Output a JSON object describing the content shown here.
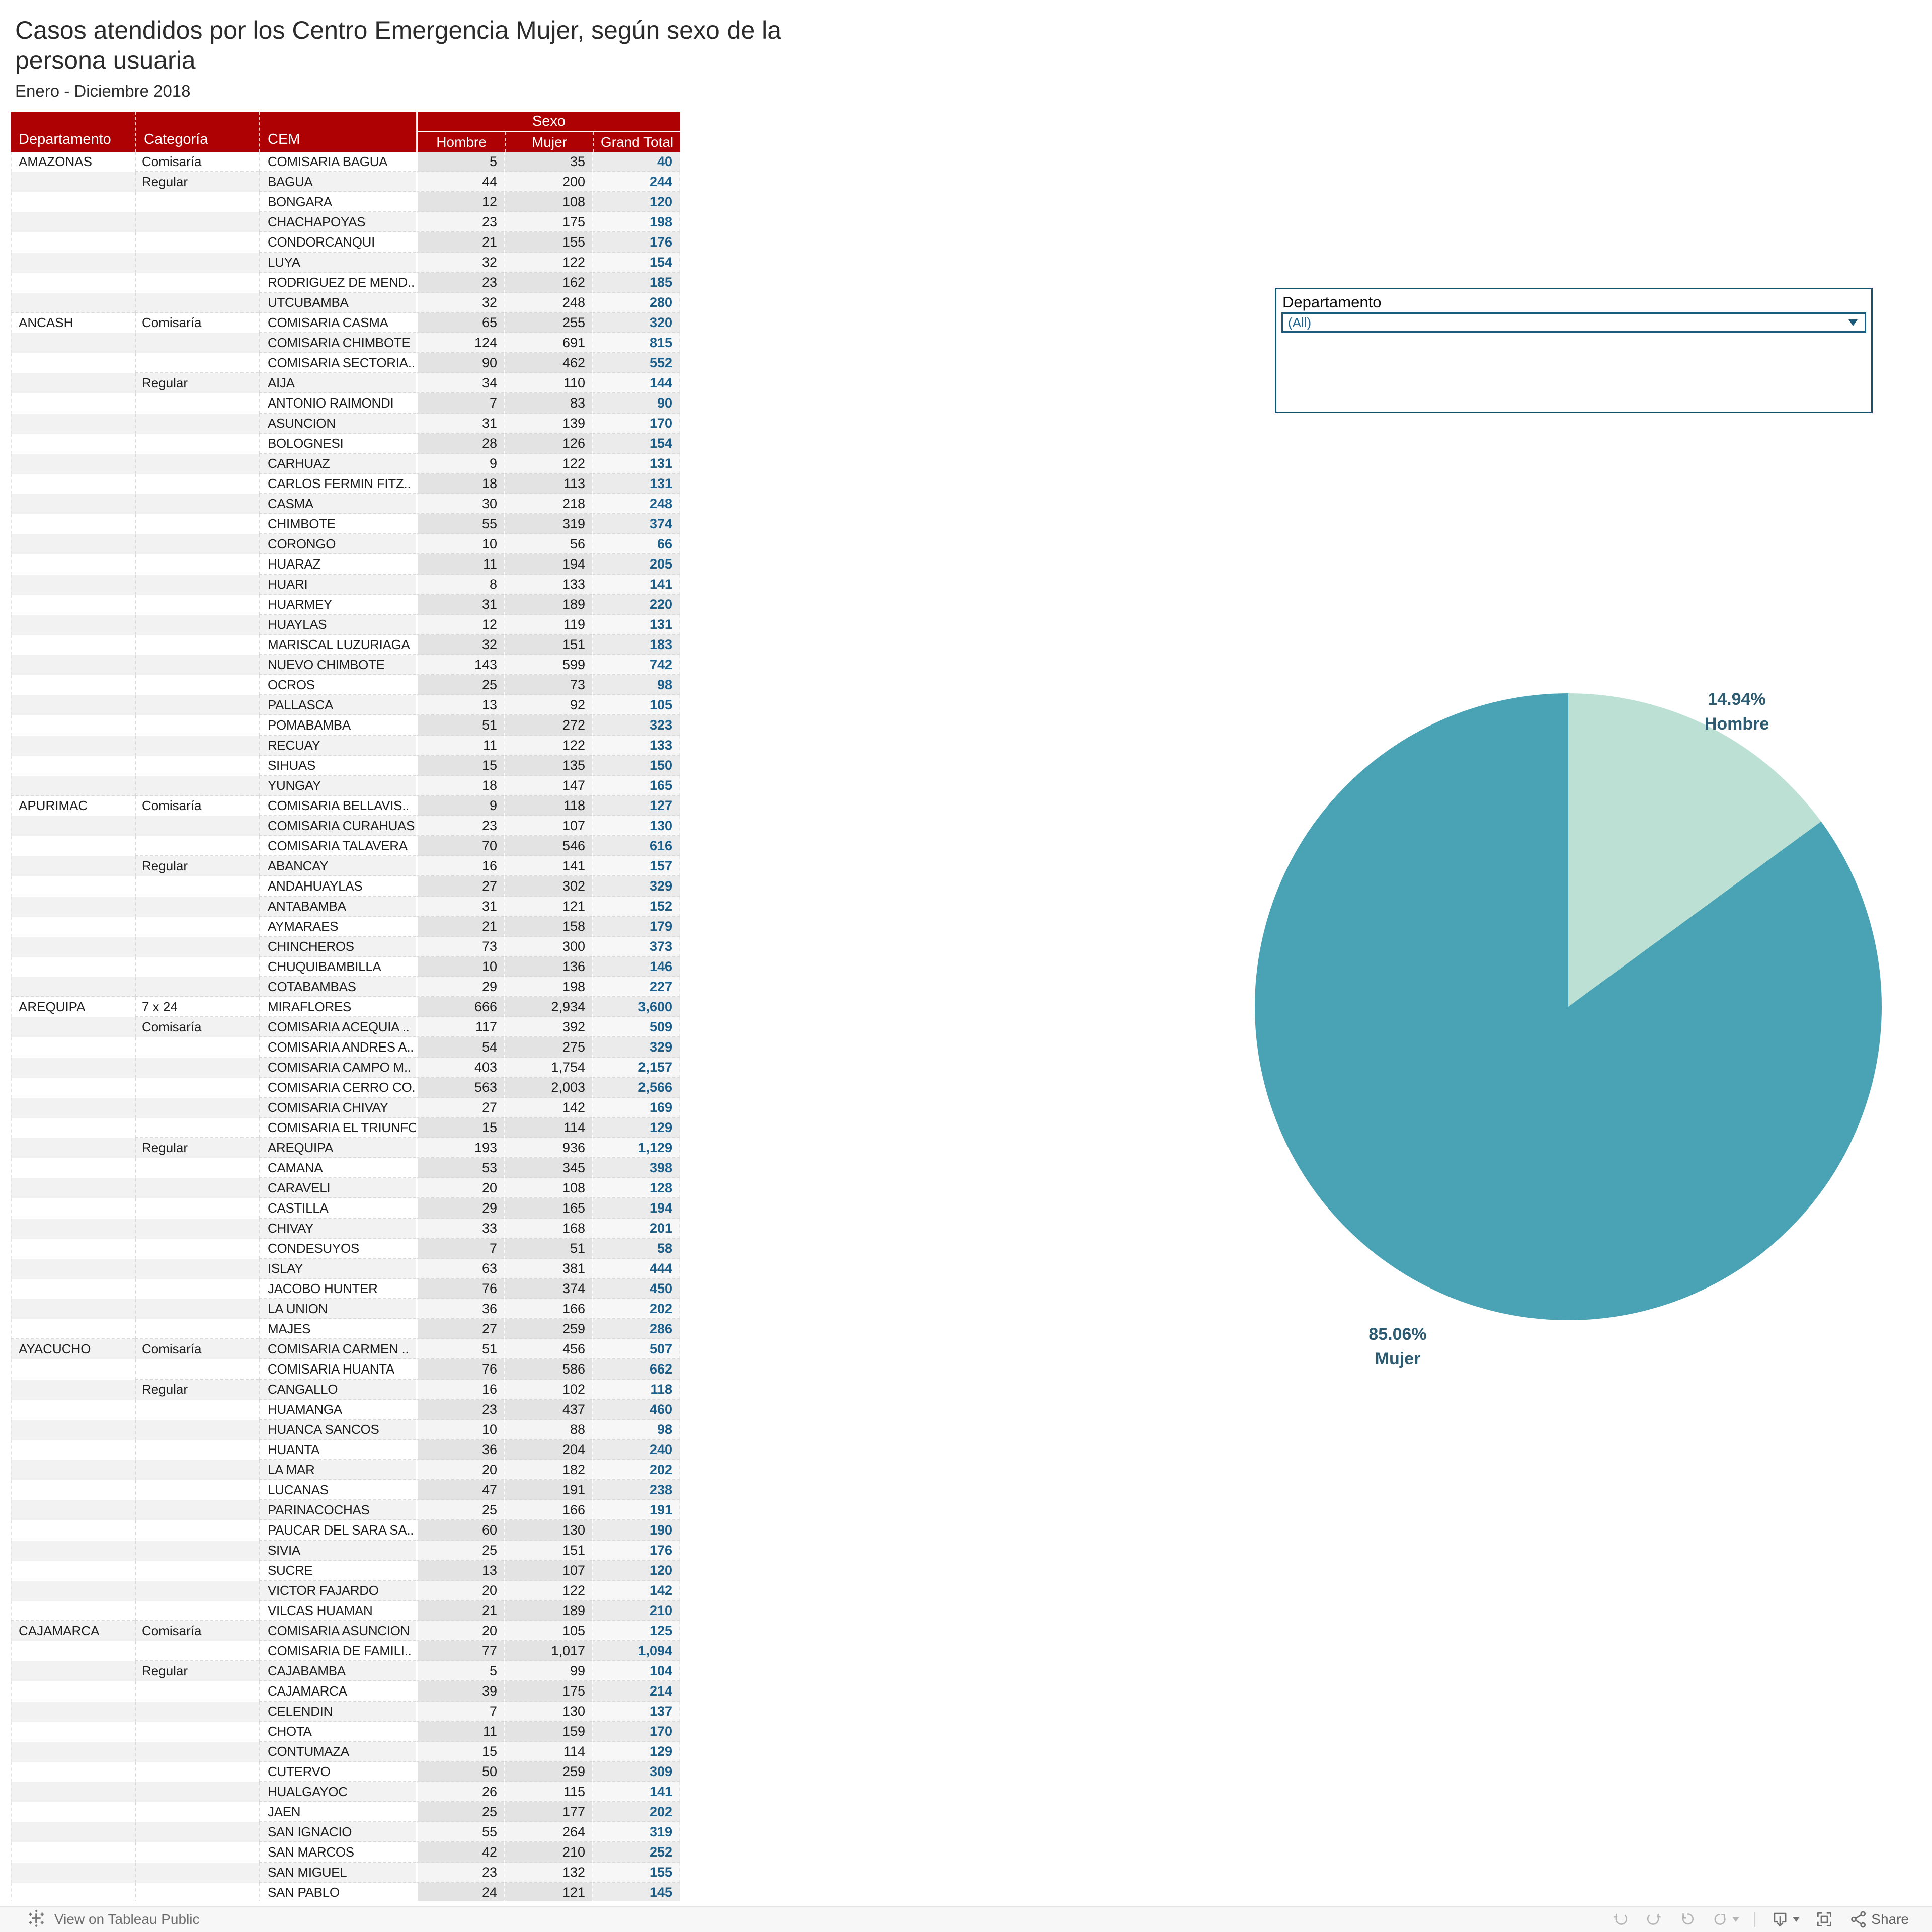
{
  "header": {
    "title_line1": "Casos atendidos por los Centro Emergencia Mujer, según sexo de la",
    "title_line2": "persona usuaria",
    "subtitle": "Enero - Diciembre 2018"
  },
  "filter": {
    "label": "Departamento",
    "value": "(All)"
  },
  "table": {
    "headers": {
      "departamento": "Departamento",
      "categoria": "Categoría",
      "cem": "CEM",
      "sexo": "Sexo",
      "hombre": "Hombre",
      "mujer": "Mujer",
      "grand_total": "Grand Total"
    },
    "rows": [
      {
        "d": "AMAZONAS",
        "c": "Comisaría",
        "n": "COMISARIA BAGUA",
        "h": "5",
        "m": "35",
        "t": "40"
      },
      {
        "d": "AMAZONAS",
        "c": "Regular",
        "n": "BAGUA",
        "h": "44",
        "m": "200",
        "t": "244"
      },
      {
        "d": "AMAZONAS",
        "c": "Regular",
        "n": "BONGARA",
        "h": "12",
        "m": "108",
        "t": "120"
      },
      {
        "d": "AMAZONAS",
        "c": "Regular",
        "n": "CHACHAPOYAS",
        "h": "23",
        "m": "175",
        "t": "198"
      },
      {
        "d": "AMAZONAS",
        "c": "Regular",
        "n": "CONDORCANQUI",
        "h": "21",
        "m": "155",
        "t": "176"
      },
      {
        "d": "AMAZONAS",
        "c": "Regular",
        "n": "LUYA",
        "h": "32",
        "m": "122",
        "t": "154"
      },
      {
        "d": "AMAZONAS",
        "c": "Regular",
        "n": "RODRIGUEZ DE MEND..",
        "h": "23",
        "m": "162",
        "t": "185"
      },
      {
        "d": "AMAZONAS",
        "c": "Regular",
        "n": "UTCUBAMBA",
        "h": "32",
        "m": "248",
        "t": "280"
      },
      {
        "d": "ANCASH",
        "c": "Comisaría",
        "n": "COMISARIA CASMA",
        "h": "65",
        "m": "255",
        "t": "320"
      },
      {
        "d": "ANCASH",
        "c": "Comisaría",
        "n": "COMISARIA CHIMBOTE",
        "h": "124",
        "m": "691",
        "t": "815"
      },
      {
        "d": "ANCASH",
        "c": "Comisaría",
        "n": "COMISARIA SECTORIA..",
        "h": "90",
        "m": "462",
        "t": "552"
      },
      {
        "d": "ANCASH",
        "c": "Regular",
        "n": "AIJA",
        "h": "34",
        "m": "110",
        "t": "144"
      },
      {
        "d": "ANCASH",
        "c": "Regular",
        "n": "ANTONIO RAIMONDI",
        "h": "7",
        "m": "83",
        "t": "90"
      },
      {
        "d": "ANCASH",
        "c": "Regular",
        "n": "ASUNCION",
        "h": "31",
        "m": "139",
        "t": "170"
      },
      {
        "d": "ANCASH",
        "c": "Regular",
        "n": "BOLOGNESI",
        "h": "28",
        "m": "126",
        "t": "154"
      },
      {
        "d": "ANCASH",
        "c": "Regular",
        "n": "CARHUAZ",
        "h": "9",
        "m": "122",
        "t": "131"
      },
      {
        "d": "ANCASH",
        "c": "Regular",
        "n": "CARLOS FERMIN FITZ..",
        "h": "18",
        "m": "113",
        "t": "131"
      },
      {
        "d": "ANCASH",
        "c": "Regular",
        "n": "CASMA",
        "h": "30",
        "m": "218",
        "t": "248"
      },
      {
        "d": "ANCASH",
        "c": "Regular",
        "n": "CHIMBOTE",
        "h": "55",
        "m": "319",
        "t": "374"
      },
      {
        "d": "ANCASH",
        "c": "Regular",
        "n": "CORONGO",
        "h": "10",
        "m": "56",
        "t": "66"
      },
      {
        "d": "ANCASH",
        "c": "Regular",
        "n": "HUARAZ",
        "h": "11",
        "m": "194",
        "t": "205"
      },
      {
        "d": "ANCASH",
        "c": "Regular",
        "n": "HUARI",
        "h": "8",
        "m": "133",
        "t": "141"
      },
      {
        "d": "ANCASH",
        "c": "Regular",
        "n": "HUARMEY",
        "h": "31",
        "m": "189",
        "t": "220"
      },
      {
        "d": "ANCASH",
        "c": "Regular",
        "n": "HUAYLAS",
        "h": "12",
        "m": "119",
        "t": "131"
      },
      {
        "d": "ANCASH",
        "c": "Regular",
        "n": "MARISCAL LUZURIAGA",
        "h": "32",
        "m": "151",
        "t": "183"
      },
      {
        "d": "ANCASH",
        "c": "Regular",
        "n": "NUEVO CHIMBOTE",
        "h": "143",
        "m": "599",
        "t": "742"
      },
      {
        "d": "ANCASH",
        "c": "Regular",
        "n": "OCROS",
        "h": "25",
        "m": "73",
        "t": "98"
      },
      {
        "d": "ANCASH",
        "c": "Regular",
        "n": "PALLASCA",
        "h": "13",
        "m": "92",
        "t": "105"
      },
      {
        "d": "ANCASH",
        "c": "Regular",
        "n": "POMABAMBA",
        "h": "51",
        "m": "272",
        "t": "323"
      },
      {
        "d": "ANCASH",
        "c": "Regular",
        "n": "RECUAY",
        "h": "11",
        "m": "122",
        "t": "133"
      },
      {
        "d": "ANCASH",
        "c": "Regular",
        "n": "SIHUAS",
        "h": "15",
        "m": "135",
        "t": "150"
      },
      {
        "d": "ANCASH",
        "c": "Regular",
        "n": "YUNGAY",
        "h": "18",
        "m": "147",
        "t": "165"
      },
      {
        "d": "APURIMAC",
        "c": "Comisaría",
        "n": "COMISARIA BELLAVIS..",
        "h": "9",
        "m": "118",
        "t": "127"
      },
      {
        "d": "APURIMAC",
        "c": "Comisaría",
        "n": "COMISARIA CURAHUASI",
        "h": "23",
        "m": "107",
        "t": "130"
      },
      {
        "d": "APURIMAC",
        "c": "Comisaría",
        "n": "COMISARIA TALAVERA",
        "h": "70",
        "m": "546",
        "t": "616"
      },
      {
        "d": "APURIMAC",
        "c": "Regular",
        "n": "ABANCAY",
        "h": "16",
        "m": "141",
        "t": "157"
      },
      {
        "d": "APURIMAC",
        "c": "Regular",
        "n": "ANDAHUAYLAS",
        "h": "27",
        "m": "302",
        "t": "329"
      },
      {
        "d": "APURIMAC",
        "c": "Regular",
        "n": "ANTABAMBA",
        "h": "31",
        "m": "121",
        "t": "152"
      },
      {
        "d": "APURIMAC",
        "c": "Regular",
        "n": "AYMARAES",
        "h": "21",
        "m": "158",
        "t": "179"
      },
      {
        "d": "APURIMAC",
        "c": "Regular",
        "n": "CHINCHEROS",
        "h": "73",
        "m": "300",
        "t": "373"
      },
      {
        "d": "APURIMAC",
        "c": "Regular",
        "n": "CHUQUIBAMBILLA",
        "h": "10",
        "m": "136",
        "t": "146"
      },
      {
        "d": "APURIMAC",
        "c": "Regular",
        "n": "COTABAMBAS",
        "h": "29",
        "m": "198",
        "t": "227"
      },
      {
        "d": "AREQUIPA",
        "c": "7 x 24",
        "n": "MIRAFLORES",
        "h": "666",
        "m": "2,934",
        "t": "3,600"
      },
      {
        "d": "AREQUIPA",
        "c": "Comisaría",
        "n": "COMISARIA ACEQUIA ..",
        "h": "117",
        "m": "392",
        "t": "509"
      },
      {
        "d": "AREQUIPA",
        "c": "Comisaría",
        "n": "COMISARIA ANDRES A..",
        "h": "54",
        "m": "275",
        "t": "329"
      },
      {
        "d": "AREQUIPA",
        "c": "Comisaría",
        "n": "COMISARIA CAMPO M..",
        "h": "403",
        "m": "1,754",
        "t": "2,157"
      },
      {
        "d": "AREQUIPA",
        "c": "Comisaría",
        "n": "COMISARIA CERRO CO..",
        "h": "563",
        "m": "2,003",
        "t": "2,566"
      },
      {
        "d": "AREQUIPA",
        "c": "Comisaría",
        "n": "COMISARIA CHIVAY",
        "h": "27",
        "m": "142",
        "t": "169"
      },
      {
        "d": "AREQUIPA",
        "c": "Comisaría",
        "n": "COMISARIA EL TRIUNFO",
        "h": "15",
        "m": "114",
        "t": "129"
      },
      {
        "d": "AREQUIPA",
        "c": "Regular",
        "n": "AREQUIPA",
        "h": "193",
        "m": "936",
        "t": "1,129"
      },
      {
        "d": "AREQUIPA",
        "c": "Regular",
        "n": "CAMANA",
        "h": "53",
        "m": "345",
        "t": "398"
      },
      {
        "d": "AREQUIPA",
        "c": "Regular",
        "n": "CARAVELI",
        "h": "20",
        "m": "108",
        "t": "128"
      },
      {
        "d": "AREQUIPA",
        "c": "Regular",
        "n": "CASTILLA",
        "h": "29",
        "m": "165",
        "t": "194"
      },
      {
        "d": "AREQUIPA",
        "c": "Regular",
        "n": "CHIVAY",
        "h": "33",
        "m": "168",
        "t": "201"
      },
      {
        "d": "AREQUIPA",
        "c": "Regular",
        "n": "CONDESUYOS",
        "h": "7",
        "m": "51",
        "t": "58"
      },
      {
        "d": "AREQUIPA",
        "c": "Regular",
        "n": "ISLAY",
        "h": "63",
        "m": "381",
        "t": "444"
      },
      {
        "d": "AREQUIPA",
        "c": "Regular",
        "n": "JACOBO HUNTER",
        "h": "76",
        "m": "374",
        "t": "450"
      },
      {
        "d": "AREQUIPA",
        "c": "Regular",
        "n": "LA UNION",
        "h": "36",
        "m": "166",
        "t": "202"
      },
      {
        "d": "AREQUIPA",
        "c": "Regular",
        "n": "MAJES",
        "h": "27",
        "m": "259",
        "t": "286"
      },
      {
        "d": "AYACUCHO",
        "c": "Comisaría",
        "n": "COMISARIA CARMEN ..",
        "h": "51",
        "m": "456",
        "t": "507"
      },
      {
        "d": "AYACUCHO",
        "c": "Comisaría",
        "n": "COMISARIA HUANTA",
        "h": "76",
        "m": "586",
        "t": "662"
      },
      {
        "d": "AYACUCHO",
        "c": "Regular",
        "n": "CANGALLO",
        "h": "16",
        "m": "102",
        "t": "118"
      },
      {
        "d": "AYACUCHO",
        "c": "Regular",
        "n": "HUAMANGA",
        "h": "23",
        "m": "437",
        "t": "460"
      },
      {
        "d": "AYACUCHO",
        "c": "Regular",
        "n": "HUANCA SANCOS",
        "h": "10",
        "m": "88",
        "t": "98"
      },
      {
        "d": "AYACUCHO",
        "c": "Regular",
        "n": "HUANTA",
        "h": "36",
        "m": "204",
        "t": "240"
      },
      {
        "d": "AYACUCHO",
        "c": "Regular",
        "n": "LA MAR",
        "h": "20",
        "m": "182",
        "t": "202"
      },
      {
        "d": "AYACUCHO",
        "c": "Regular",
        "n": "LUCANAS",
        "h": "47",
        "m": "191",
        "t": "238"
      },
      {
        "d": "AYACUCHO",
        "c": "Regular",
        "n": "PARINACOCHAS",
        "h": "25",
        "m": "166",
        "t": "191"
      },
      {
        "d": "AYACUCHO",
        "c": "Regular",
        "n": "PAUCAR DEL SARA SA..",
        "h": "60",
        "m": "130",
        "t": "190"
      },
      {
        "d": "AYACUCHO",
        "c": "Regular",
        "n": "SIVIA",
        "h": "25",
        "m": "151",
        "t": "176"
      },
      {
        "d": "AYACUCHO",
        "c": "Regular",
        "n": "SUCRE",
        "h": "13",
        "m": "107",
        "t": "120"
      },
      {
        "d": "AYACUCHO",
        "c": "Regular",
        "n": "VICTOR FAJARDO",
        "h": "20",
        "m": "122",
        "t": "142"
      },
      {
        "d": "AYACUCHO",
        "c": "Regular",
        "n": "VILCAS HUAMAN",
        "h": "21",
        "m": "189",
        "t": "210"
      },
      {
        "d": "CAJAMARCA",
        "c": "Comisaría",
        "n": "COMISARIA ASUNCION",
        "h": "20",
        "m": "105",
        "t": "125"
      },
      {
        "d": "CAJAMARCA",
        "c": "Comisaría",
        "n": "COMISARIA DE FAMILI..",
        "h": "77",
        "m": "1,017",
        "t": "1,094"
      },
      {
        "d": "CAJAMARCA",
        "c": "Regular",
        "n": "CAJABAMBA",
        "h": "5",
        "m": "99",
        "t": "104"
      },
      {
        "d": "CAJAMARCA",
        "c": "Regular",
        "n": "CAJAMARCA",
        "h": "39",
        "m": "175",
        "t": "214"
      },
      {
        "d": "CAJAMARCA",
        "c": "Regular",
        "n": "CELENDIN",
        "h": "7",
        "m": "130",
        "t": "137"
      },
      {
        "d": "CAJAMARCA",
        "c": "Regular",
        "n": "CHOTA",
        "h": "11",
        "m": "159",
        "t": "170"
      },
      {
        "d": "CAJAMARCA",
        "c": "Regular",
        "n": "CONTUMAZA",
        "h": "15",
        "m": "114",
        "t": "129"
      },
      {
        "d": "CAJAMARCA",
        "c": "Regular",
        "n": "CUTERVO",
        "h": "50",
        "m": "259",
        "t": "309"
      },
      {
        "d": "CAJAMARCA",
        "c": "Regular",
        "n": "HUALGAYOC",
        "h": "26",
        "m": "115",
        "t": "141"
      },
      {
        "d": "CAJAMARCA",
        "c": "Regular",
        "n": "JAEN",
        "h": "25",
        "m": "177",
        "t": "202"
      },
      {
        "d": "CAJAMARCA",
        "c": "Regular",
        "n": "SAN IGNACIO",
        "h": "55",
        "m": "264",
        "t": "319"
      },
      {
        "d": "CAJAMARCA",
        "c": "Regular",
        "n": "SAN MARCOS",
        "h": "42",
        "m": "210",
        "t": "252"
      },
      {
        "d": "CAJAMARCA",
        "c": "Regular",
        "n": "SAN MIGUEL",
        "h": "23",
        "m": "132",
        "t": "155"
      },
      {
        "d": "CAJAMARCA",
        "c": "Regular",
        "n": "SAN PABLO",
        "h": "24",
        "m": "121",
        "t": "145"
      }
    ]
  },
  "chart_data": {
    "type": "pie",
    "title": "Casos atendidos por los Centro Emergencia Mujer, según sexo de la persona usuaria — Enero - Diciembre 2018",
    "legend_position": "none",
    "start_angle_deg": 0,
    "direction": "clockwise",
    "slices": [
      {
        "label": "Hombre",
        "percent": 14.94,
        "percent_label": "14.94%"
      },
      {
        "label": "Mujer",
        "percent": 85.06,
        "percent_label": "85.06%"
      }
    ],
    "colors": {
      "Hombre": "#BDE0D4",
      "Mujer": "#4AA2B5"
    }
  },
  "colors": {
    "header_red": "#AE0103",
    "grand_total_blue": "#1B5E8A",
    "pie_label": "#2D5C72",
    "filter_border": "#16536F"
  },
  "footer": {
    "view_text": "View on Tableau Public",
    "share_label": "Share",
    "icons": [
      "undo",
      "redo",
      "revert",
      "refresh",
      "download",
      "fullscreen",
      "share"
    ]
  }
}
